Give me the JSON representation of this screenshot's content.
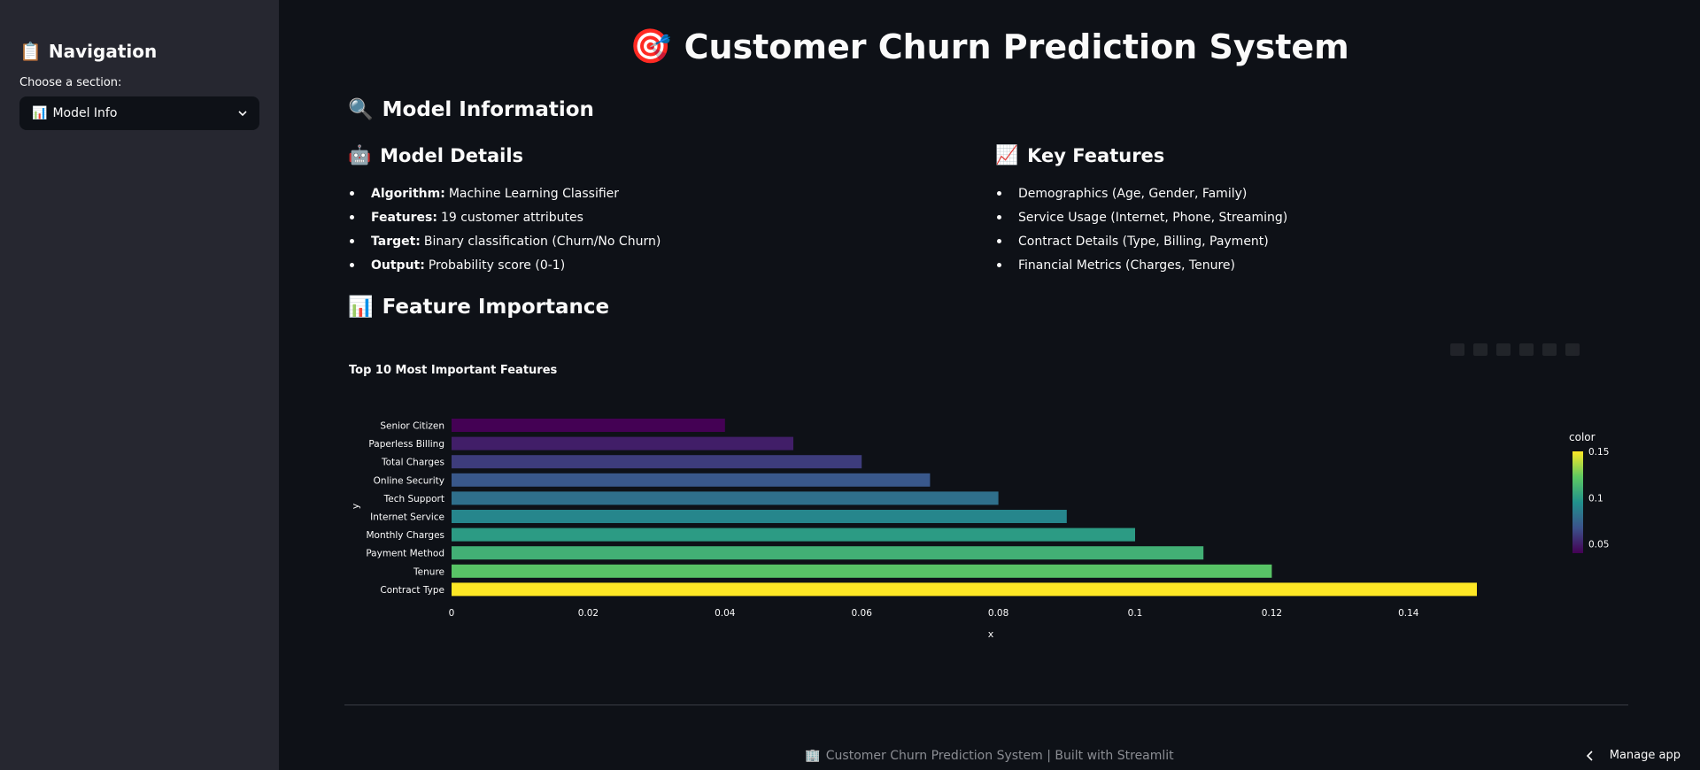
{
  "sidebar": {
    "title_icon": "📋",
    "title": "Navigation",
    "select_label": "Choose a section:",
    "select_icon": "📊",
    "select_value": "Model Info"
  },
  "header": {
    "icon": "🎯",
    "title": "Customer Churn Prediction System"
  },
  "model_info": {
    "icon": "🔍",
    "title": "Model Information"
  },
  "model_details": {
    "icon": "🤖",
    "title": "Model Details",
    "items": [
      {
        "label": "Algorithm:",
        "value": "Machine Learning Classifier"
      },
      {
        "label": "Features:",
        "value": "19 customer attributes"
      },
      {
        "label": "Target:",
        "value": "Binary classification (Churn/No Churn)"
      },
      {
        "label": "Output:",
        "value": "Probability score (0-1)"
      }
    ]
  },
  "key_features": {
    "icon": "📈",
    "title": "Key Features",
    "items": [
      "Demographics (Age, Gender, Family)",
      "Service Usage (Internet, Phone, Streaming)",
      "Contract Details (Type, Billing, Payment)",
      "Financial Metrics (Charges, Tenure)"
    ]
  },
  "feature_importance": {
    "icon": "📊",
    "title": "Feature Importance"
  },
  "chart_data": {
    "type": "bar",
    "orientation": "horizontal",
    "title": "Top 10 Most Important Features",
    "xlabel": "x",
    "ylabel": "y",
    "categories": [
      "Senior Citizen",
      "Paperless Billing",
      "Total Charges",
      "Online Security",
      "Tech Support",
      "Internet Service",
      "Monthly Charges",
      "Payment Method",
      "Tenure",
      "Contract Type"
    ],
    "values": [
      0.04,
      0.05,
      0.06,
      0.07,
      0.08,
      0.09,
      0.1,
      0.11,
      0.12,
      0.15
    ],
    "xticks": [
      "0",
      "0.02",
      "0.04",
      "0.06",
      "0.08",
      "0.1",
      "0.12",
      "0.14"
    ],
    "xlim": [
      0,
      0.15
    ],
    "colorscale": "viridis",
    "colorbar": {
      "title": "color",
      "ticks": [
        "0.15",
        "0.1",
        "0.05"
      ],
      "range": [
        0.04,
        0.15
      ]
    },
    "grid": false
  },
  "footer": {
    "icon": "🏢",
    "text": "Customer Churn Prediction System | Built with Streamlit"
  },
  "manage_app": "Manage app"
}
